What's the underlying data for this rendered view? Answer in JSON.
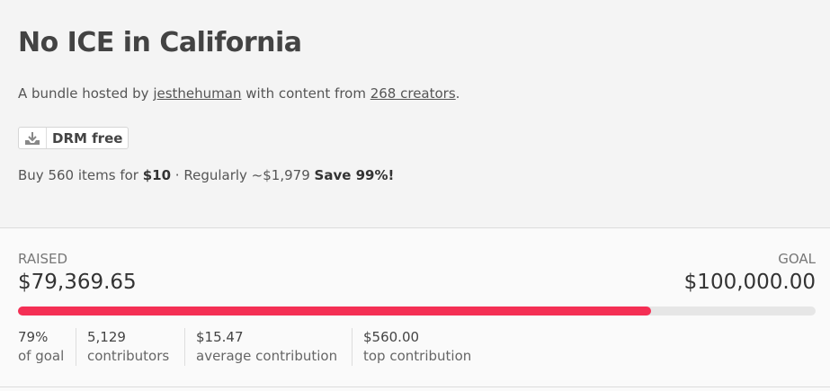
{
  "header": {
    "title": "No ICE in California",
    "byline": {
      "prefix": "A bundle hosted by ",
      "host": "jesthehuman",
      "middle": " with content from ",
      "creators": "268 creators",
      "suffix": "."
    },
    "badge": "DRM free",
    "offer": {
      "prefix": "Buy 560 items for ",
      "price": "$10",
      "middle": " · Regularly ~$1,979 ",
      "save": "Save 99%!"
    }
  },
  "progress": {
    "raised_label": "RAISED",
    "goal_label": "GOAL",
    "raised": {
      "value": 79369.65,
      "label": "$79,369.65"
    },
    "goal": {
      "value": 100000,
      "label": "$100,000.00"
    },
    "stats": [
      {
        "value": "79%",
        "label": "of goal"
      },
      {
        "value": "5,129",
        "label": "contributors"
      },
      {
        "value": "$15.47",
        "label": "average contribution"
      },
      {
        "value": "$560.00",
        "label": "top contribution"
      }
    ]
  }
}
